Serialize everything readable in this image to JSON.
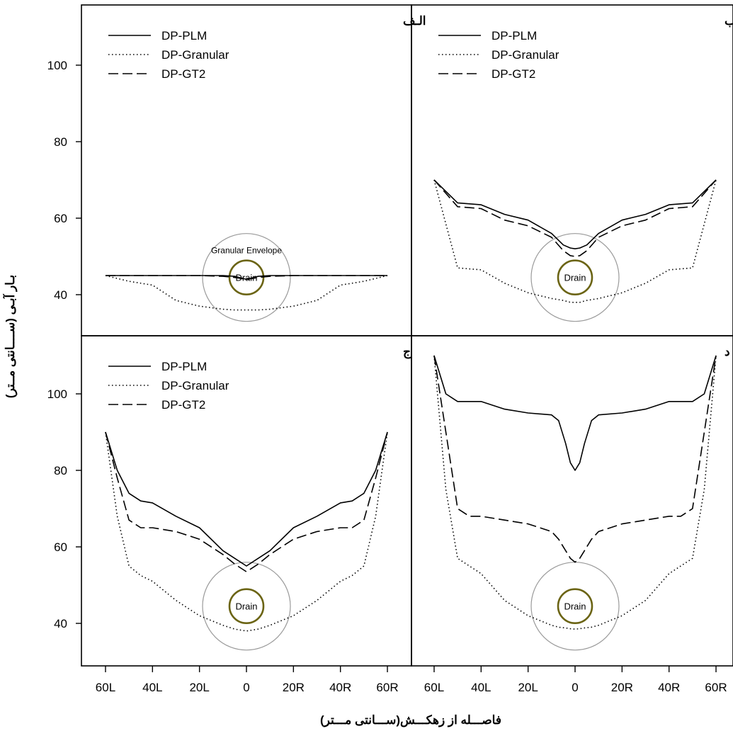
{
  "figure": {
    "xlabel": "فاصـــله از زهکـــش(ســـانتی مـــتر)",
    "ylabel": "بـار آبـی (ســــانتی مــتر)"
  },
  "chart_data": [
    {
      "type": "line",
      "panel_label": "الـف",
      "annotations": [
        "Granular Envelope",
        "Drain"
      ],
      "x_ticks": [
        "60L",
        "40L",
        "20L",
        "0",
        "20R",
        "40R",
        "60R"
      ],
      "y_ticks": [
        40,
        60,
        80,
        100
      ],
      "xlim": [
        -65,
        65
      ],
      "ylim": [
        29,
        117
      ],
      "legend": "top-left",
      "x": [
        -60,
        -50,
        -40,
        -30,
        -20,
        -10,
        -5,
        0,
        5,
        10,
        20,
        30,
        40,
        50,
        60
      ],
      "series": [
        {
          "name": "DP-PLM",
          "style": "solid",
          "values": [
            45,
            45,
            45,
            45,
            45,
            45,
            44.8,
            44,
            44.8,
            45,
            45,
            45,
            45,
            45,
            45
          ]
        },
        {
          "name": "DP-Granular",
          "style": "dotted",
          "values": [
            45,
            43.5,
            42.5,
            38.5,
            37,
            36.2,
            36,
            36,
            36,
            36.2,
            37,
            38.5,
            42.5,
            43.5,
            45
          ]
        },
        {
          "name": "DP-GT2",
          "style": "dashed",
          "values": [
            45,
            45,
            45,
            45,
            45,
            44.8,
            44.5,
            44,
            44.5,
            44.8,
            45,
            45,
            45,
            45,
            45
          ]
        }
      ]
    },
    {
      "type": "line",
      "panel_label": "ب",
      "annotations": [
        "Drain"
      ],
      "x_ticks": [
        "60L",
        "40L",
        "20L",
        "0",
        "20R",
        "40R",
        "60R"
      ],
      "y_ticks": [
        40,
        60,
        80,
        100
      ],
      "xlim": [
        -65,
        65
      ],
      "ylim": [
        29,
        117
      ],
      "legend": "top-left",
      "x": [
        -60,
        -50,
        -40,
        -30,
        -20,
        -10,
        -5,
        -2,
        0,
        2,
        5,
        10,
        20,
        30,
        40,
        50,
        60
      ],
      "series": [
        {
          "name": "DP-PLM",
          "style": "solid",
          "values": [
            70,
            64,
            63.5,
            61,
            59.5,
            56,
            53,
            52.2,
            52,
            52.2,
            53,
            56,
            59.5,
            61,
            63.5,
            64,
            70
          ]
        },
        {
          "name": "DP-Granular",
          "style": "dotted",
          "values": [
            70,
            47,
            46.5,
            43,
            40.5,
            39,
            38.5,
            38,
            38,
            38,
            38.5,
            39,
            40.5,
            43,
            46.5,
            47,
            70
          ]
        },
        {
          "name": "DP-GT2",
          "style": "dashed",
          "values": [
            70,
            63,
            62.5,
            59.5,
            58,
            55,
            51.5,
            50.2,
            50,
            50.2,
            51.5,
            55,
            58,
            59.5,
            62.5,
            63,
            70
          ]
        }
      ]
    },
    {
      "type": "line",
      "panel_label": "ج",
      "annotations": [
        "Drain"
      ],
      "x_ticks": [
        "60L",
        "40L",
        "20L",
        "0",
        "20R",
        "40R",
        "60R"
      ],
      "y_ticks": [
        40,
        60,
        80,
        100
      ],
      "xlim": [
        -65,
        65
      ],
      "ylim": [
        29,
        117
      ],
      "legend": "top-left",
      "x": [
        -60,
        -55,
        -50,
        -45,
        -40,
        -30,
        -20,
        -10,
        -5,
        0,
        5,
        10,
        20,
        30,
        40,
        45,
        50,
        55,
        60
      ],
      "series": [
        {
          "name": "DP-PLM",
          "style": "solid",
          "values": [
            90,
            80,
            74,
            72,
            71.5,
            68,
            65,
            59,
            57,
            55,
            57,
            59,
            65,
            68,
            71.5,
            72,
            74,
            80,
            90
          ]
        },
        {
          "name": "DP-Granular",
          "style": "dotted",
          "values": [
            90,
            68,
            55,
            52.5,
            51,
            46,
            42,
            39.5,
            38.5,
            38,
            38.5,
            39.5,
            42,
            46,
            51,
            52.5,
            55,
            68,
            90
          ]
        },
        {
          "name": "DP-GT2",
          "style": "dashed",
          "values": [
            90,
            78,
            67,
            65,
            65,
            64,
            62,
            58,
            55.5,
            53.5,
            55.5,
            58,
            62,
            64,
            65,
            65,
            67,
            78,
            90
          ]
        }
      ]
    },
    {
      "type": "line",
      "panel_label": "د",
      "annotations": [
        "Drain"
      ],
      "x_ticks": [
        "60L",
        "40L",
        "20L",
        "0",
        "20R",
        "40R",
        "60R"
      ],
      "y_ticks": [
        40,
        60,
        80,
        100
      ],
      "xlim": [
        -65,
        65
      ],
      "ylim": [
        29,
        117
      ],
      "legend": "none",
      "x": [
        -60,
        -55,
        -50,
        -45,
        -40,
        -30,
        -20,
        -10,
        -7,
        -4,
        -2,
        0,
        2,
        4,
        7,
        10,
        20,
        30,
        40,
        45,
        50,
        55,
        60
      ],
      "series": [
        {
          "name": "DP-PLM",
          "style": "solid",
          "values": [
            110,
            100,
            98,
            98,
            98,
            96,
            95,
            94.5,
            93,
            87,
            82,
            80,
            82,
            87,
            93,
            94.5,
            95,
            96,
            98,
            98,
            98,
            100,
            110
          ]
        },
        {
          "name": "DP-Granular",
          "style": "dotted",
          "values": [
            110,
            75,
            57,
            55,
            53,
            46,
            42,
            39.5,
            39,
            38.8,
            38.6,
            38.5,
            38.6,
            38.8,
            39,
            39.5,
            42,
            46,
            53,
            55,
            57,
            75,
            110
          ]
        },
        {
          "name": "DP-GT2",
          "style": "dashed",
          "values": [
            110,
            90,
            70,
            68,
            68,
            67,
            66,
            64,
            62,
            59,
            57,
            56,
            57,
            59,
            62,
            64,
            66,
            67,
            68,
            68,
            70,
            90,
            110
          ]
        }
      ]
    }
  ]
}
